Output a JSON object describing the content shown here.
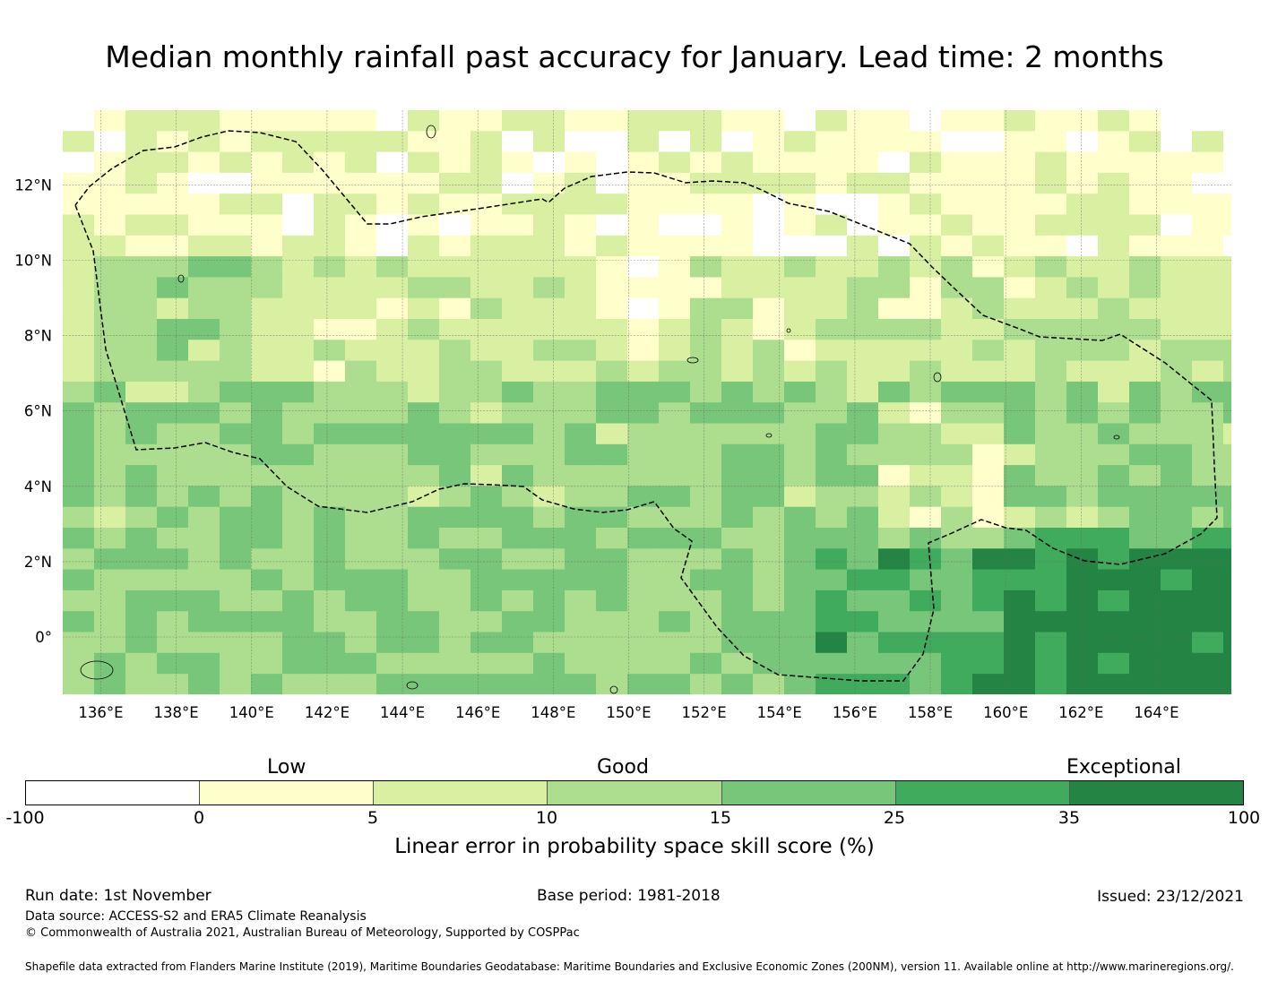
{
  "title": "Median monthly rainfall past accuracy for January. Lead time: 2 months",
  "map": {
    "lon_labels": [
      "136°E",
      "138°E",
      "140°E",
      "142°E",
      "144°E",
      "146°E",
      "148°E",
      "150°E",
      "152°E",
      "154°E",
      "156°E",
      "158°E",
      "160°E",
      "162°E",
      "164°E"
    ],
    "lat_labels": [
      "12°N",
      "10°N",
      "8°N",
      "6°N",
      "4°N",
      "2°N",
      "0°"
    ],
    "category_colors": [
      "#ffffff",
      "#ffffcc",
      "#d9f0a3",
      "#addd8e",
      "#78c679",
      "#41ab5d",
      "#238443"
    ],
    "boundary_color": "#000000"
  },
  "colorbar": {
    "category_labels": [
      "Low",
      "Good",
      "Exceptional"
    ],
    "ticks": [
      "-100",
      "0",
      "5",
      "10",
      "15",
      "25",
      "35",
      "100"
    ],
    "axis_label": "Linear error in probability space skill score (%)"
  },
  "footer": {
    "run_date": "Run date: 1st November",
    "base_period": "Base period: 1981-2018",
    "issued": "Issued: 23/12/2021",
    "data_source": "Data source: ACCESS-S2 and ERA5 Climate Reanalysis",
    "copyright": "© Commonwealth of Australia 2021, Australian Bureau of Meteorology, Supported by COSPPac",
    "shapefile": "Shapefile data extracted from Flanders Marine Institute (2019), Maritime Boundaries Geodatabase: Maritime Boundaries and Exclusive Economic Zones (200NM), version 11. Available online at http://www.marineregions.org/."
  }
}
